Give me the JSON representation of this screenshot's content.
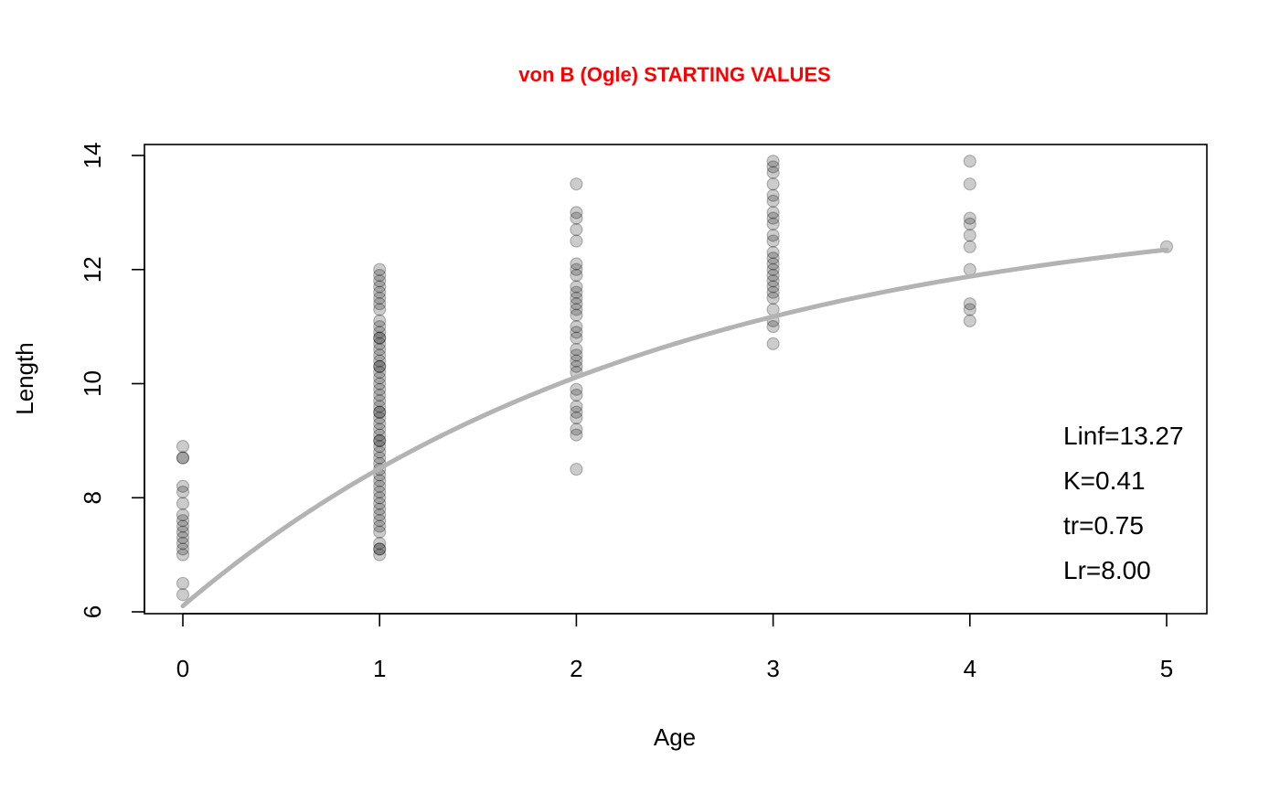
{
  "chart_data": {
    "type": "scatter",
    "title": "von B (Ogle) STARTING VALUES",
    "xlabel": "Age",
    "ylabel": "Length",
    "xlim": [
      -0.2,
      5.2
    ],
    "ylim": [
      6,
      14
    ],
    "x_ticks": [
      "0",
      "1",
      "2",
      "3",
      "4",
      "5"
    ],
    "y_ticks": [
      "6",
      "8",
      "10",
      "12",
      "14"
    ],
    "grid": false,
    "point_color": "#000000",
    "curve_color": "#b3b3b3",
    "points": [
      {
        "x": 0,
        "y": 8.9
      },
      {
        "x": 0,
        "y": 8.7
      },
      {
        "x": 0,
        "y": 8.7
      },
      {
        "x": 0,
        "y": 8.2
      },
      {
        "x": 0,
        "y": 8.1
      },
      {
        "x": 0,
        "y": 7.9
      },
      {
        "x": 0,
        "y": 7.7
      },
      {
        "x": 0,
        "y": 7.6
      },
      {
        "x": 0,
        "y": 7.5
      },
      {
        "x": 0,
        "y": 7.4
      },
      {
        "x": 0,
        "y": 7.3
      },
      {
        "x": 0,
        "y": 7.2
      },
      {
        "x": 0,
        "y": 7.1
      },
      {
        "x": 0,
        "y": 7.0
      },
      {
        "x": 0,
        "y": 6.5
      },
      {
        "x": 0,
        "y": 6.3
      },
      {
        "x": 1,
        "y": 12.0
      },
      {
        "x": 1,
        "y": 11.9
      },
      {
        "x": 1,
        "y": 11.8
      },
      {
        "x": 1,
        "y": 11.7
      },
      {
        "x": 1,
        "y": 11.6
      },
      {
        "x": 1,
        "y": 11.5
      },
      {
        "x": 1,
        "y": 11.4
      },
      {
        "x": 1,
        "y": 11.3
      },
      {
        "x": 1,
        "y": 11.1
      },
      {
        "x": 1,
        "y": 11.0
      },
      {
        "x": 1,
        "y": 10.9
      },
      {
        "x": 1,
        "y": 10.8
      },
      {
        "x": 1,
        "y": 10.8
      },
      {
        "x": 1,
        "y": 10.7
      },
      {
        "x": 1,
        "y": 10.6
      },
      {
        "x": 1,
        "y": 10.5
      },
      {
        "x": 1,
        "y": 10.4
      },
      {
        "x": 1,
        "y": 10.3
      },
      {
        "x": 1,
        "y": 10.3
      },
      {
        "x": 1,
        "y": 10.2
      },
      {
        "x": 1,
        "y": 10.1
      },
      {
        "x": 1,
        "y": 10.0
      },
      {
        "x": 1,
        "y": 9.9
      },
      {
        "x": 1,
        "y": 9.8
      },
      {
        "x": 1,
        "y": 9.7
      },
      {
        "x": 1,
        "y": 9.6
      },
      {
        "x": 1,
        "y": 9.5
      },
      {
        "x": 1,
        "y": 9.5
      },
      {
        "x": 1,
        "y": 9.4
      },
      {
        "x": 1,
        "y": 9.3
      },
      {
        "x": 1,
        "y": 9.2
      },
      {
        "x": 1,
        "y": 9.1
      },
      {
        "x": 1,
        "y": 9.0
      },
      {
        "x": 1,
        "y": 9.0
      },
      {
        "x": 1,
        "y": 8.9
      },
      {
        "x": 1,
        "y": 8.8
      },
      {
        "x": 1,
        "y": 8.7
      },
      {
        "x": 1,
        "y": 8.6
      },
      {
        "x": 1,
        "y": 8.5
      },
      {
        "x": 1,
        "y": 8.4
      },
      {
        "x": 1,
        "y": 8.3
      },
      {
        "x": 1,
        "y": 8.2
      },
      {
        "x": 1,
        "y": 8.1
      },
      {
        "x": 1,
        "y": 8.0
      },
      {
        "x": 1,
        "y": 7.9
      },
      {
        "x": 1,
        "y": 7.8
      },
      {
        "x": 1,
        "y": 7.7
      },
      {
        "x": 1,
        "y": 7.6
      },
      {
        "x": 1,
        "y": 7.5
      },
      {
        "x": 1,
        "y": 7.4
      },
      {
        "x": 1,
        "y": 7.2
      },
      {
        "x": 1,
        "y": 7.1
      },
      {
        "x": 1,
        "y": 7.1
      },
      {
        "x": 1,
        "y": 7.0
      },
      {
        "x": 2,
        "y": 13.5
      },
      {
        "x": 2,
        "y": 13.0
      },
      {
        "x": 2,
        "y": 12.9
      },
      {
        "x": 2,
        "y": 12.7
      },
      {
        "x": 2,
        "y": 12.5
      },
      {
        "x": 2,
        "y": 12.1
      },
      {
        "x": 2,
        "y": 12.0
      },
      {
        "x": 2,
        "y": 11.9
      },
      {
        "x": 2,
        "y": 11.7
      },
      {
        "x": 2,
        "y": 11.6
      },
      {
        "x": 2,
        "y": 11.5
      },
      {
        "x": 2,
        "y": 11.4
      },
      {
        "x": 2,
        "y": 11.3
      },
      {
        "x": 2,
        "y": 11.2
      },
      {
        "x": 2,
        "y": 11.0
      },
      {
        "x": 2,
        "y": 10.9
      },
      {
        "x": 2,
        "y": 10.8
      },
      {
        "x": 2,
        "y": 10.6
      },
      {
        "x": 2,
        "y": 10.5
      },
      {
        "x": 2,
        "y": 10.4
      },
      {
        "x": 2,
        "y": 10.3
      },
      {
        "x": 2,
        "y": 10.2
      },
      {
        "x": 2,
        "y": 9.9
      },
      {
        "x": 2,
        "y": 9.8
      },
      {
        "x": 2,
        "y": 9.6
      },
      {
        "x": 2,
        "y": 9.5
      },
      {
        "x": 2,
        "y": 9.4
      },
      {
        "x": 2,
        "y": 9.2
      },
      {
        "x": 2,
        "y": 9.1
      },
      {
        "x": 2,
        "y": 8.5
      },
      {
        "x": 3,
        "y": 13.9
      },
      {
        "x": 3,
        "y": 13.8
      },
      {
        "x": 3,
        "y": 13.7
      },
      {
        "x": 3,
        "y": 13.5
      },
      {
        "x": 3,
        "y": 13.3
      },
      {
        "x": 3,
        "y": 13.2
      },
      {
        "x": 3,
        "y": 13.0
      },
      {
        "x": 3,
        "y": 12.9
      },
      {
        "x": 3,
        "y": 12.8
      },
      {
        "x": 3,
        "y": 12.6
      },
      {
        "x": 3,
        "y": 12.5
      },
      {
        "x": 3,
        "y": 12.3
      },
      {
        "x": 3,
        "y": 12.2
      },
      {
        "x": 3,
        "y": 12.1
      },
      {
        "x": 3,
        "y": 12.0
      },
      {
        "x": 3,
        "y": 11.9
      },
      {
        "x": 3,
        "y": 11.8
      },
      {
        "x": 3,
        "y": 11.7
      },
      {
        "x": 3,
        "y": 11.6
      },
      {
        "x": 3,
        "y": 11.5
      },
      {
        "x": 3,
        "y": 11.3
      },
      {
        "x": 3,
        "y": 11.1
      },
      {
        "x": 3,
        "y": 11.0
      },
      {
        "x": 3,
        "y": 10.7
      },
      {
        "x": 4,
        "y": 13.9
      },
      {
        "x": 4,
        "y": 13.5
      },
      {
        "x": 4,
        "y": 12.9
      },
      {
        "x": 4,
        "y": 12.8
      },
      {
        "x": 4,
        "y": 12.6
      },
      {
        "x": 4,
        "y": 12.4
      },
      {
        "x": 4,
        "y": 12.0
      },
      {
        "x": 4,
        "y": 11.4
      },
      {
        "x": 4,
        "y": 11.3
      },
      {
        "x": 4,
        "y": 11.1
      },
      {
        "x": 5,
        "y": 12.4
      }
    ],
    "curve": {
      "Linf": 13.27,
      "K": 0.41,
      "tr": 0.75,
      "Lr": 8.0,
      "x_range": [
        0,
        5
      ]
    },
    "annotations": [
      "Linf=13.27",
      "K=0.41",
      "tr=0.75",
      "Lr=8.00"
    ],
    "annotation_position": "bottom-right"
  }
}
